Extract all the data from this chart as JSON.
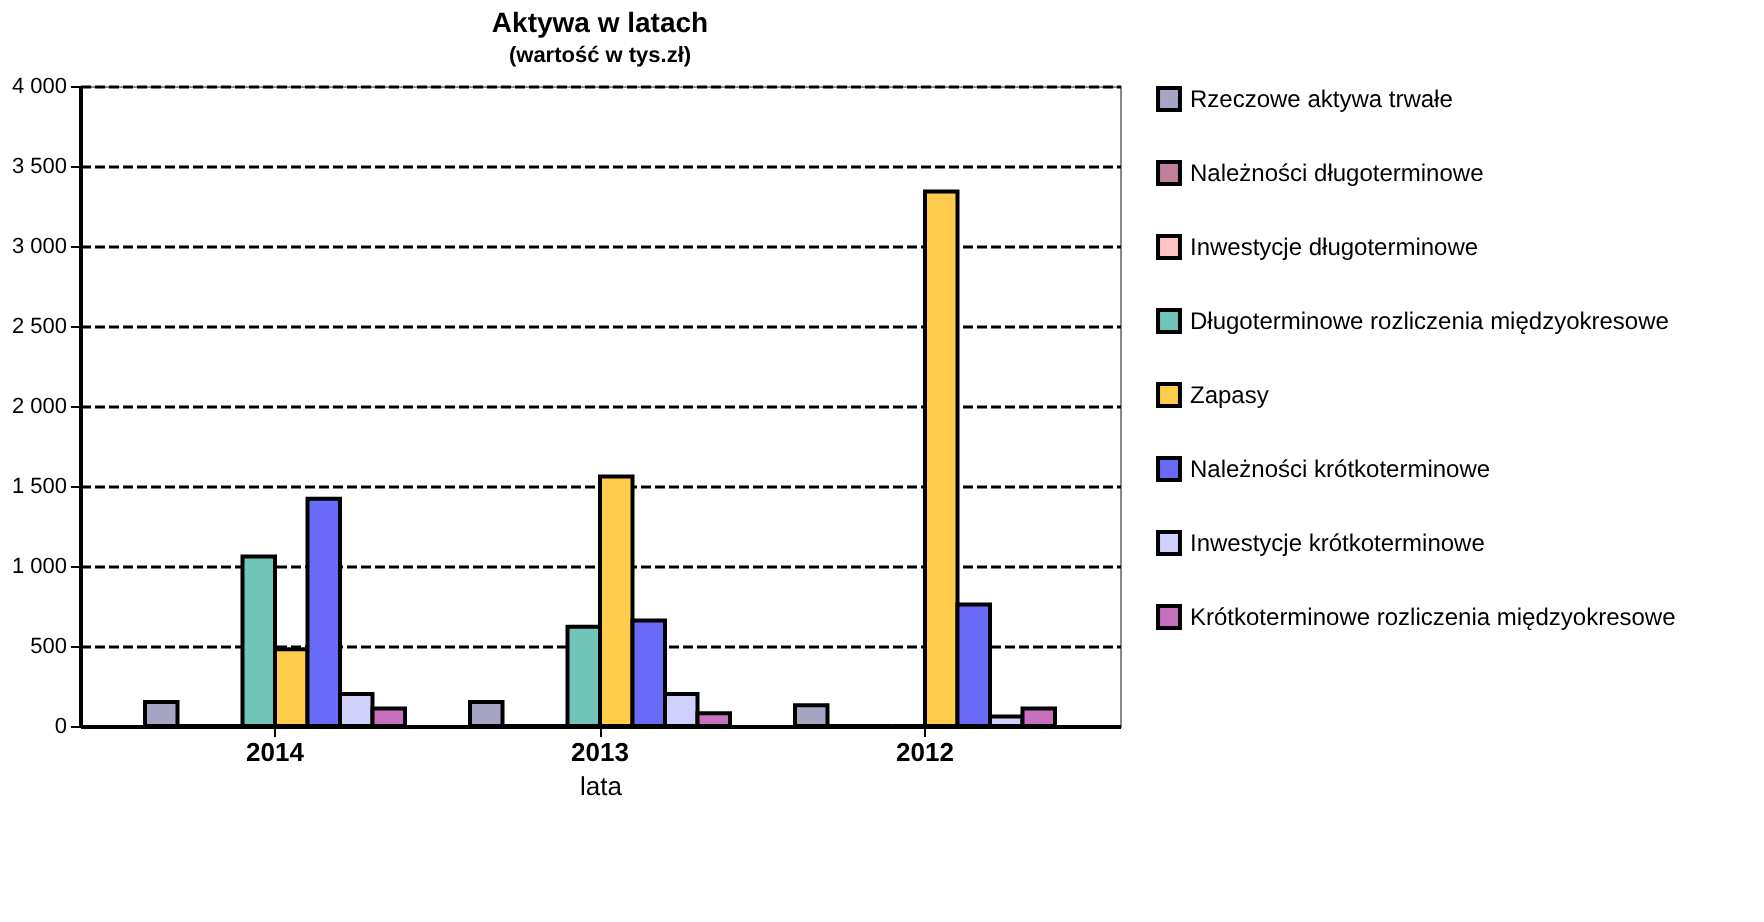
{
  "chart_data": {
    "type": "bar",
    "title": "Aktywa w latach",
    "subtitle": "(wartość w tys.zł)",
    "xlabel": "lata",
    "categories": [
      "2014",
      "2013",
      "2012"
    ],
    "series": [
      {
        "name": "Rzeczowe aktywa trwałe",
        "color": "#a6a6c4",
        "values": [
          150,
          150,
          130
        ]
      },
      {
        "name": "Należności długoterminowe",
        "color": "#c0809c",
        "values": [
          0,
          0,
          0
        ]
      },
      {
        "name": "Inwestycje długoterminowe",
        "color": "#ffc4c4",
        "values": [
          0,
          0,
          0
        ]
      },
      {
        "name": "Długoterminowe rozliczenia międzyokresowe",
        "color": "#70c4b8",
        "values": [
          1060,
          620,
          0
        ]
      },
      {
        "name": "Zapasy",
        "color": "#ffcc4c",
        "values": [
          480,
          1560,
          3340
        ]
      },
      {
        "name": "Należności krótkoterminowe",
        "color": "#6a6af8",
        "values": [
          1420,
          660,
          760
        ]
      },
      {
        "name": "Inwestycje krótkoterminowe",
        "color": "#d0d0fc",
        "values": [
          200,
          200,
          60
        ]
      },
      {
        "name": "Krótkoterminowe rozliczenia międzyokresowe",
        "color": "#c870c0",
        "values": [
          110,
          80,
          110
        ]
      }
    ],
    "ylim": [
      0,
      4000
    ],
    "yticks": [
      {
        "value": 0,
        "label": "0"
      },
      {
        "value": 500,
        "label": "500"
      },
      {
        "value": 1000,
        "label": "1 000"
      },
      {
        "value": 1500,
        "label": "1 500"
      },
      {
        "value": 2000,
        "label": "2 000"
      },
      {
        "value": 2500,
        "label": "2 500"
      },
      {
        "value": 3000,
        "label": "3 000"
      },
      {
        "value": 3500,
        "label": "3 500"
      },
      {
        "value": 4000,
        "label": "4 000"
      }
    ],
    "grid": "y",
    "legend": "right"
  }
}
